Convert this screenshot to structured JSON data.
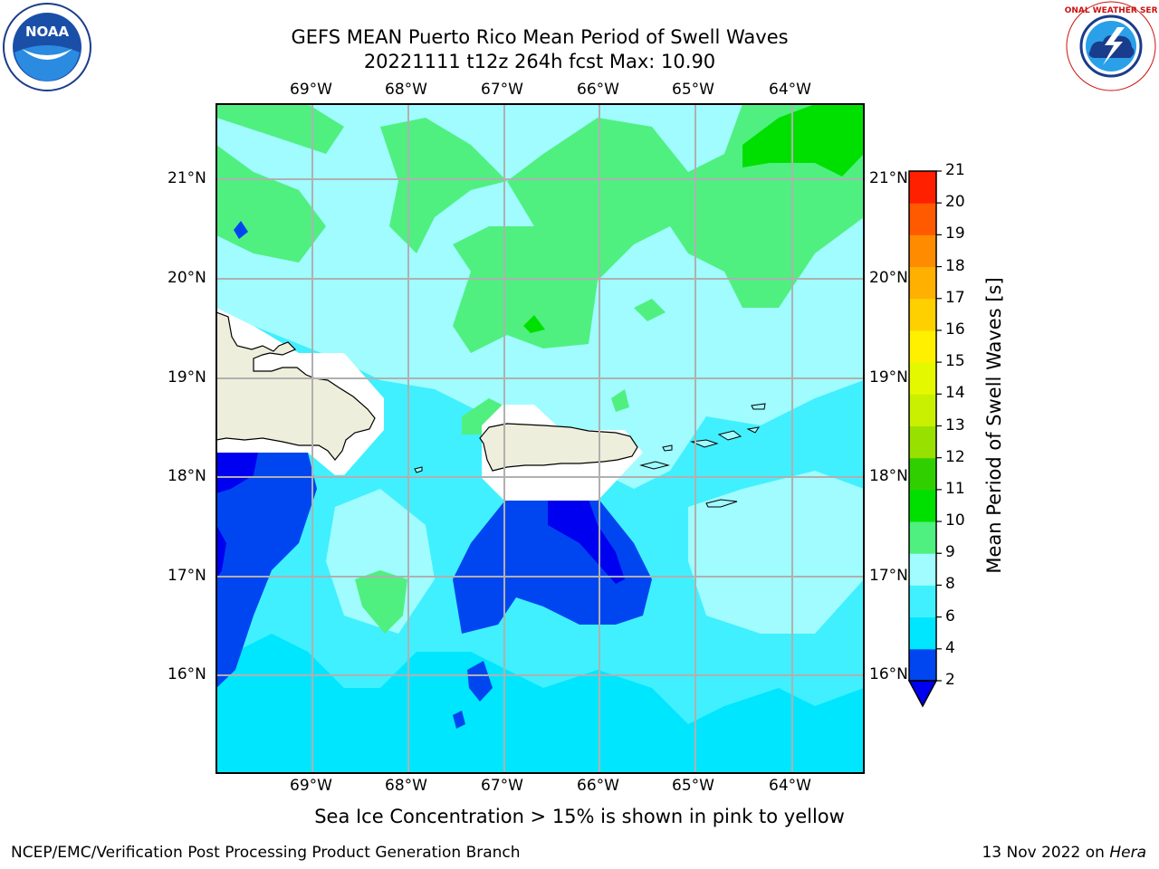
{
  "header": {
    "title_line1": "GEFS MEAN Puerto Rico Mean Period of Swell Waves",
    "title_line2": "20221111 t12z 264h fcst   Max: 10.90"
  },
  "logos": {
    "left": "NOAA",
    "right": "NATIONAL WEATHER SERVICE"
  },
  "map": {
    "longitude_ticks": [
      "69°W",
      "68°W",
      "67°W",
      "66°W",
      "65°W",
      "64°W"
    ],
    "latitude_ticks": [
      "21°N",
      "20°N",
      "19°N",
      "18°N",
      "17°N",
      "16°N"
    ]
  },
  "colorbar": {
    "title": "Mean Period of Swell Waves [s]",
    "levels": [
      "2",
      "4",
      "6",
      "8",
      "9",
      "10",
      "11",
      "12",
      "13",
      "14",
      "15",
      "16",
      "17",
      "18",
      "19",
      "20",
      "21"
    ],
    "colors": [
      "#0046f0",
      "#00e6ff",
      "#40f0ff",
      "#a0fcff",
      "#4ff080",
      "#00e000",
      "#30d000",
      "#98e000",
      "#c8f000",
      "#e4f800",
      "#fff000",
      "#ffd000",
      "#ffb000",
      "#ff8c00",
      "#ff5a00",
      "#ff2000"
    ],
    "under_color": "#0000f0"
  },
  "caption": "Sea Ice Concentration > 15% is shown in pink to yellow",
  "footer": {
    "left": "NCEP/EMC/Verification Post Processing Product Generation Branch",
    "right_date": "13 Nov 2022 on ",
    "right_host": "Hera"
  }
}
